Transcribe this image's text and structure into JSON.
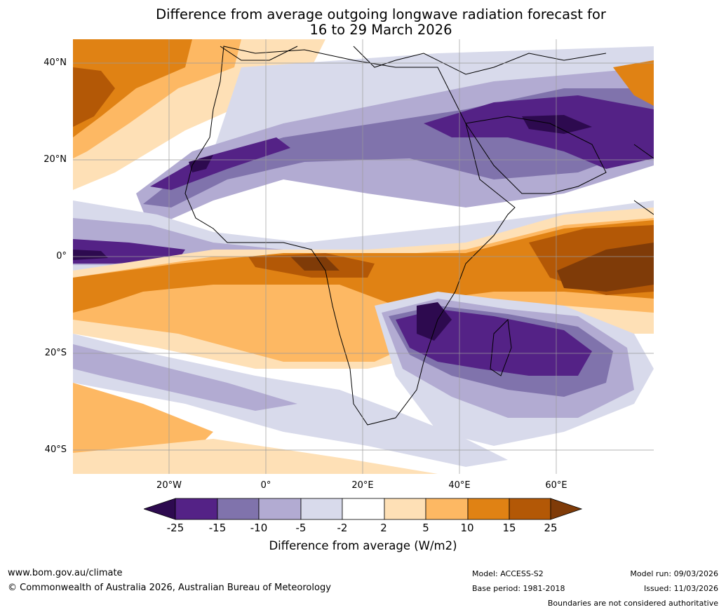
{
  "title": {
    "line1": "Difference from average outgoing longwave radiation forecast for",
    "line2": "16 to 29 March 2026"
  },
  "axes": {
    "lat_labels": [
      "40°N",
      "20°N",
      "0°",
      "20°S",
      "40°S"
    ],
    "lon_labels": [
      "20°W",
      "0°",
      "20°E",
      "40°E",
      "60°E"
    ]
  },
  "colorbar": {
    "label": "Difference from average (W/m2)",
    "ticks": [
      "-25",
      "-15",
      "-10",
      "-5",
      "-2",
      "2",
      "5",
      "10",
      "15",
      "25"
    ],
    "colors": {
      "lt_-25": "#2d0a4f",
      "-25_-15": "#542286",
      "-15_-10": "#8073ac",
      "-10_-5": "#b2abd2",
      "-5_-2": "#d8daeb",
      "-2_2": "#ffffff",
      "2_5": "#fee0b6",
      "5_10": "#fdb863",
      "10_15": "#e08214",
      "15_25": "#b35806",
      "gt_25": "#7f3b08"
    }
  },
  "footer": {
    "website": "www.bom.gov.au/climate",
    "copyright": "© Commonwealth of Australia 2026, Australian Bureau of Meteorology",
    "model": "Model: ACCESS-S2",
    "base_period": "Base period: 1981-2018",
    "model_run": "Model run: 09/03/2026",
    "issued": "Issued: 11/03/2026",
    "disclaimer": "Boundaries are not considered authoritative"
  }
}
